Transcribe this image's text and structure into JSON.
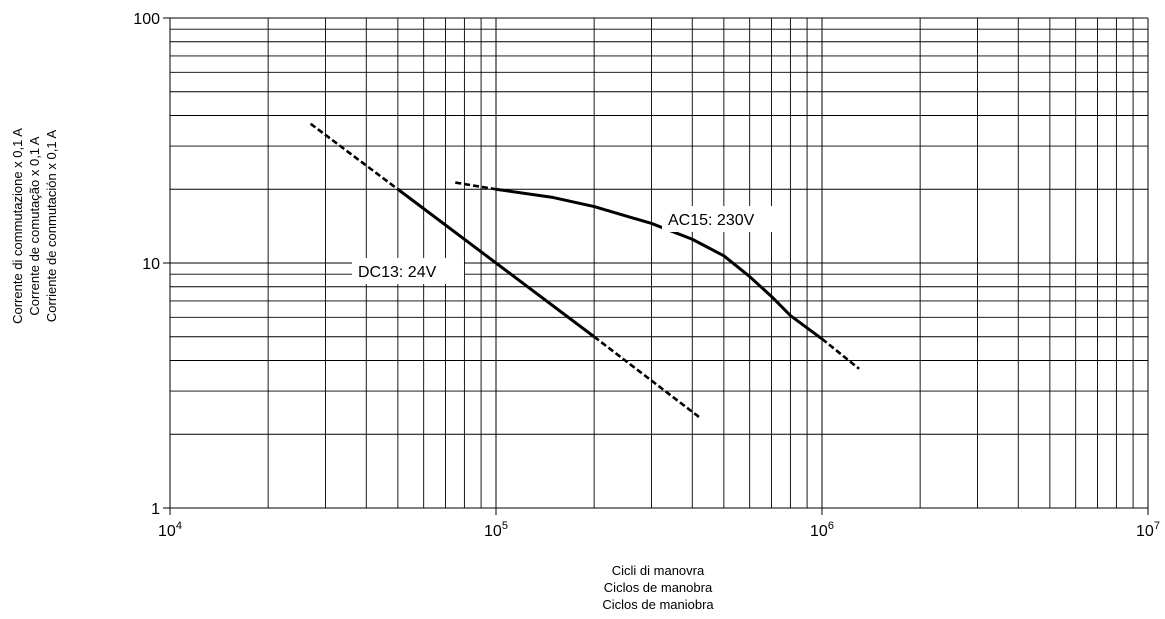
{
  "chart_data": {
    "type": "line",
    "x_scale": "log",
    "y_scale": "log",
    "xlim": [
      10000,
      10000000
    ],
    "ylim": [
      1,
      100
    ],
    "grid": true,
    "legend": "none",
    "x_ticks": [
      {
        "base": "10",
        "exp": "4",
        "value": 10000
      },
      {
        "base": "10",
        "exp": "5",
        "value": 100000
      },
      {
        "base": "10",
        "exp": "6",
        "value": 1000000
      },
      {
        "base": "10",
        "exp": "7",
        "value": 10000000
      }
    ],
    "y_ticks": [
      {
        "label": "1",
        "value": 1
      },
      {
        "label": "10",
        "value": 10
      },
      {
        "label": "100",
        "value": 100
      }
    ],
    "xlabel": [
      "Cicli di manovra",
      "Ciclos de manobra",
      "Ciclos de maniobra"
    ],
    "ylabel": [
      "Corrente di commutazione x 0,1 A",
      "Corrente de comutação x 0,1 A",
      "Corriente de conmutación x 0,1 A"
    ],
    "series": [
      {
        "name": "DC13: 24V",
        "color": "#000000",
        "solid": [
          [
            50000,
            20
          ],
          [
            100000,
            10
          ],
          [
            200000,
            5
          ]
        ],
        "dashed_start": [
          [
            27000,
            37
          ],
          [
            50000,
            20
          ]
        ],
        "dashed_end": [
          [
            200000,
            5
          ],
          [
            420000,
            2.35
          ]
        ]
      },
      {
        "name": "AC15: 230V",
        "color": "#000000",
        "solid": [
          [
            100000,
            20
          ],
          [
            150000,
            18.5
          ],
          [
            200000,
            17
          ],
          [
            300000,
            14.5
          ],
          [
            400000,
            12.5
          ],
          [
            500000,
            10.7
          ],
          [
            600000,
            8.8
          ],
          [
            700000,
            7.3
          ],
          [
            800000,
            6.1
          ],
          [
            1000000,
            4.9
          ]
        ],
        "dashed_start": [
          [
            75000,
            21.3
          ],
          [
            100000,
            20
          ]
        ],
        "dashed_end": [
          [
            1000000,
            4.9
          ],
          [
            1300000,
            3.7
          ]
        ]
      }
    ]
  }
}
